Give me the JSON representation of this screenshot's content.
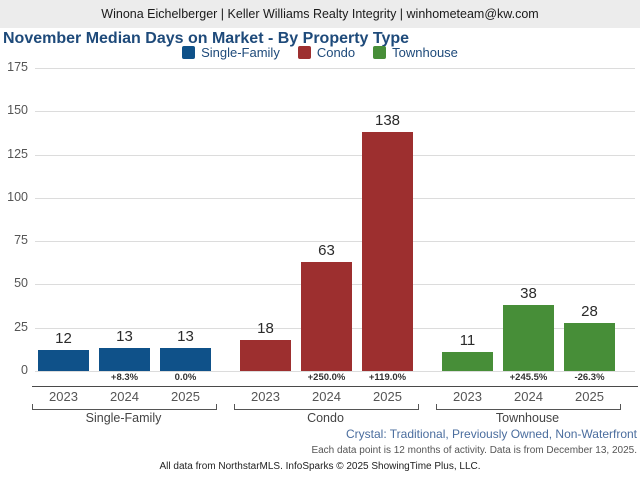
{
  "header": {
    "contact": "Winona Eichelberger | Keller Williams Realty Integrity | winhometeam@kw.com"
  },
  "title": "November Median Days on Market - By Property Type",
  "colors": {
    "title_text": "#1e4a7a",
    "single_family": "#0f5189",
    "condo": "#9d2f2f",
    "townhouse": "#478e38"
  },
  "chart_data": {
    "type": "bar",
    "title": "November Median Days on Market - By Property Type",
    "xlabel": "",
    "ylabel": "",
    "ylim": [
      0,
      175
    ],
    "yticks": [
      0,
      25,
      50,
      75,
      100,
      125,
      150,
      175
    ],
    "grid": true,
    "legend_position": "top",
    "categories": [
      "2023",
      "2024",
      "2025"
    ],
    "series": [
      {
        "name": "Single-Family",
        "color": "#0f5189",
        "values": [
          12,
          13,
          13
        ],
        "pct_change": [
          null,
          "+8.3%",
          "0.0%"
        ]
      },
      {
        "name": "Condo",
        "color": "#9d2f2f",
        "values": [
          18,
          63,
          138
        ],
        "pct_change": [
          null,
          "+250.0%",
          "+119.0%"
        ]
      },
      {
        "name": "Townhouse",
        "color": "#478e38",
        "values": [
          11,
          38,
          28
        ],
        "pct_change": [
          null,
          "+245.5%",
          "-26.3%"
        ]
      }
    ]
  },
  "footer": {
    "filters": "Crystal: Traditional, Previously Owned, Non-Waterfront",
    "data_note": "Each data point is 12 months of activity. Data is from December 13, 2025.",
    "attribution": "All data from NorthstarMLS. InfoSparks © 2025 ShowingTime Plus, LLC."
  }
}
